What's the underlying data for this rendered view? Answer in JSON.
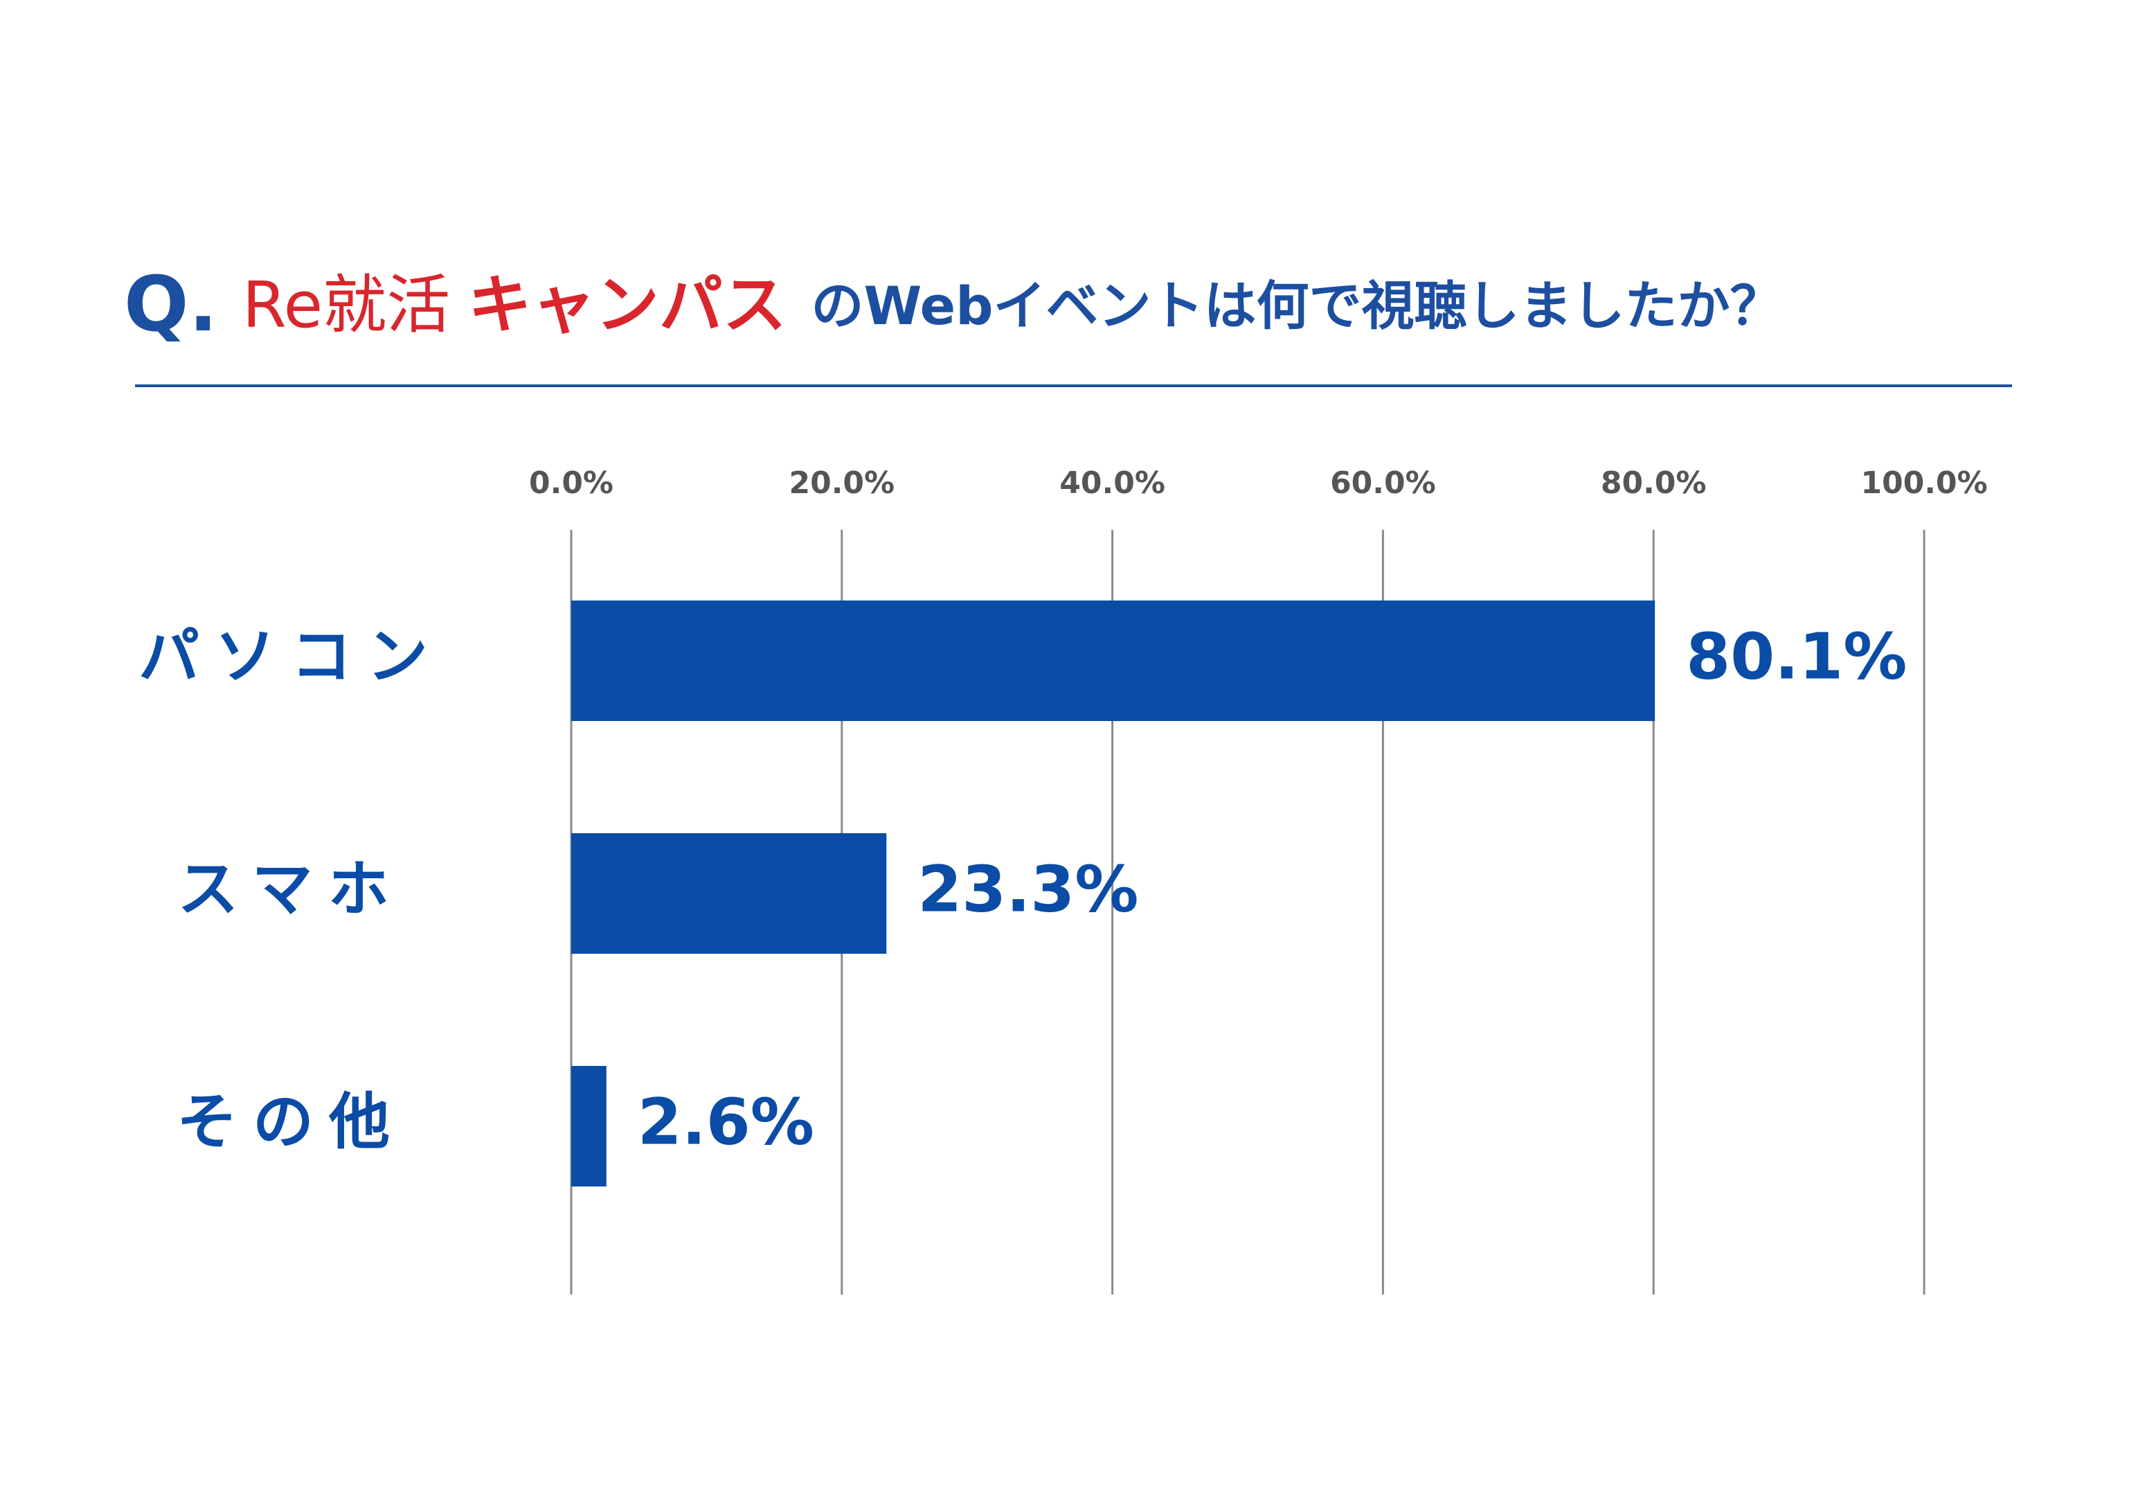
{
  "chart_data": {
    "type": "hbar",
    "title": [
      "Q.",
      "Re就活",
      "キャンパス",
      "のWebイベントは何で視聴しましたか？"
    ],
    "categories": [
      "パソコン",
      "スマホ",
      "その他"
    ],
    "values": [
      80.1,
      23.3,
      2.6
    ],
    "value_labels": [
      "80.1%",
      "23.3%",
      "2.6%"
    ],
    "color": "#0a4ca6",
    "xlim": [
      0,
      100
    ],
    "xticks": [
      {
        "value": 0,
        "label": "0.0%"
      },
      {
        "value": 20,
        "label": "20.0%"
      },
      {
        "value": 40,
        "label": "40.0%"
      },
      {
        "value": 60,
        "label": "60.0%"
      },
      {
        "value": 80,
        "label": "80.0%"
      },
      {
        "value": 100,
        "label": "100.0%"
      }
    ],
    "grid": true
  }
}
